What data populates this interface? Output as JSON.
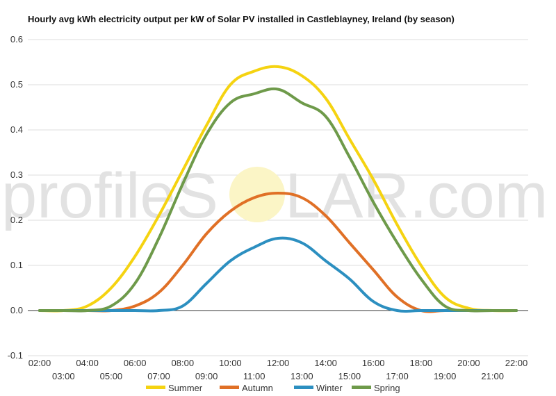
{
  "chart_data": {
    "type": "line",
    "title": "Hourly avg kWh electricity output per kW of Solar PV installed in Castleblayney, Ireland (by season)",
    "xlabel": "",
    "ylabel": "",
    "x": [
      "02:00",
      "03:00",
      "04:00",
      "05:00",
      "06:00",
      "07:00",
      "08:00",
      "09:00",
      "10:00",
      "11:00",
      "12:00",
      "13:00",
      "14:00",
      "15:00",
      "16:00",
      "17:00",
      "18:00",
      "19:00",
      "20:00",
      "21:00",
      "22:00"
    ],
    "yticks": [
      "-0.1",
      "0.0",
      "0.1",
      "0.2",
      "0.3",
      "0.4",
      "0.5",
      "0.6"
    ],
    "ylim": [
      -0.1,
      0.6
    ],
    "grid": true,
    "legend_position": "bottom",
    "series": [
      {
        "name": "Summer",
        "color": "#f5d311",
        "values": [
          0.0,
          0.0,
          0.01,
          0.05,
          0.12,
          0.21,
          0.31,
          0.41,
          0.5,
          0.53,
          0.54,
          0.52,
          0.47,
          0.38,
          0.29,
          0.19,
          0.1,
          0.03,
          0.005,
          0.0,
          0.0
        ]
      },
      {
        "name": "Autumn",
        "color": "#e07026",
        "values": [
          0.0,
          0.0,
          0.0,
          0.0,
          0.01,
          0.04,
          0.1,
          0.17,
          0.22,
          0.25,
          0.26,
          0.25,
          0.21,
          0.15,
          0.09,
          0.03,
          0.0,
          0.0,
          0.0,
          0.0,
          0.0
        ]
      },
      {
        "name": "Winter",
        "color": "#2c8fc0",
        "values": [
          0.0,
          0.0,
          0.0,
          0.0,
          0.0,
          0.0,
          0.01,
          0.06,
          0.11,
          0.14,
          0.16,
          0.15,
          0.11,
          0.07,
          0.02,
          0.0,
          0.0,
          0.0,
          0.0,
          0.0,
          0.0
        ]
      },
      {
        "name": "Spring",
        "color": "#6e9a4a",
        "values": [
          0.0,
          0.0,
          0.0,
          0.01,
          0.06,
          0.16,
          0.28,
          0.39,
          0.46,
          0.48,
          0.49,
          0.46,
          0.43,
          0.34,
          0.24,
          0.15,
          0.07,
          0.01,
          0.0,
          0.0,
          0.0
        ]
      }
    ]
  },
  "watermark": {
    "left": "profileS",
    "right": "LAR.com",
    "sun_color": "#fbf5c6"
  }
}
